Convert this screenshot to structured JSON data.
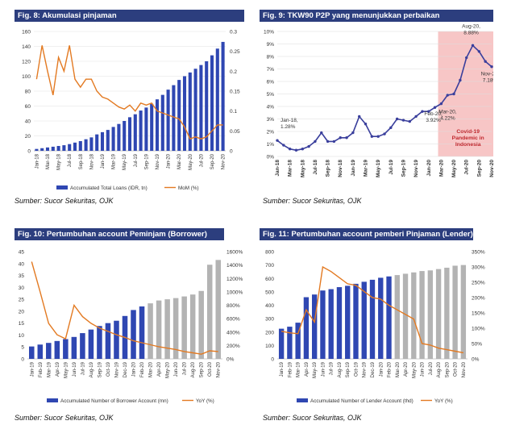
{
  "charts": [
    {
      "title": "Fig. 8: Akumulasi pinjaman",
      "source": "Sumber: Sucor Sekuritas, OJK",
      "chart_data": {
        "type": "bar+line",
        "title": "Fig. 8: Akumulasi pinjaman",
        "categories": [
          "Jan-18",
          "Feb-18",
          "Mar-18",
          "Apr-18",
          "May-18",
          "Jun-18",
          "Jul-18",
          "Aug-18",
          "Sep-18",
          "Oct-18",
          "Nov-18",
          "Dec-18",
          "Jan-19",
          "Feb-19",
          "Mar-19",
          "Apr-19",
          "May-19",
          "Jun-19",
          "Jul-19",
          "Aug-19",
          "Sep-19",
          "Oct-19",
          "Nov-19",
          "Dec-19",
          "Jan-20",
          "Feb-20",
          "Mar-20",
          "Apr-20",
          "May-20",
          "Jun-20",
          "Jul-20",
          "Aug-20",
          "Sep-20",
          "Oct-20",
          "Nov-20"
        ],
        "tick_labels": [
          "Jan-18",
          "Mar-18",
          "May-18",
          "Jul-18",
          "Sep-18",
          "Nov-18",
          "Jan-19",
          "Mar-19",
          "May-19",
          "Jul-19",
          "Sep-19",
          "Nov-19",
          "Jan-20",
          "Mar-20",
          "May-20",
          "Jul-20",
          "Sep-20",
          "Nov-20"
        ],
        "series": [
          {
            "name": "Accumulated Total Loans (IDR, tn)",
            "axis": "left",
            "kind": "bar",
            "color": "#2f47b2",
            "values": [
              2.5,
              3.5,
              4.5,
              5.5,
              6.5,
              7.5,
              9,
              11,
              13,
              15.5,
              18,
              22,
              25,
              28,
              32,
              36,
              40,
              45,
              49,
              54,
              58,
              63,
              69,
              75,
              82,
              88,
              95,
              100,
              105,
              110,
              115,
              120,
              128,
              137,
              146
            ]
          },
          {
            "name": "MoM (%)",
            "axis": "right",
            "kind": "line",
            "color": "#e37a22",
            "values": [
              0.18,
              0.265,
              0.2,
              0.14,
              0.235,
              0.2,
              0.265,
              0.18,
              0.16,
              0.18,
              0.18,
              0.15,
              0.135,
              0.13,
              0.12,
              0.11,
              0.105,
              0.115,
              0.1,
              0.12,
              0.115,
              0.12,
              0.1,
              0.095,
              0.09,
              0.085,
              0.08,
              0.06,
              0.03,
              0.035,
              0.03,
              0.035,
              0.05,
              0.065,
              0.065
            ]
          }
        ],
        "yleft": {
          "min": 0,
          "max": 160,
          "ticks": [
            "0",
            "20",
            "40",
            "60",
            "80",
            "100",
            "120",
            "140",
            "160"
          ]
        },
        "yright": {
          "min": 0,
          "max": 0.3,
          "ticks": [
            "0",
            "0.05",
            "0.1",
            "0.15",
            "0.2",
            "0.25",
            "0.3"
          ]
        },
        "legend": [
          "Accumulated Total Loans (IDR, tn)",
          "MoM (%)"
        ]
      }
    },
    {
      "title": "Fig. 9: TKW90 P2P yang menunjukkan perbaikan",
      "source": "Sumber: Sucor Sekuritas, OJK",
      "chart_data": {
        "type": "line",
        "title": "Fig. 9: TKW90 P2P yang menunjukkan perbaikan",
        "categories": [
          "Jan-18",
          "Feb-18",
          "Mar-18",
          "Apr-18",
          "May-18",
          "Jun-18",
          "Jul-18",
          "Aug-18",
          "Sep-18",
          "Oct-18",
          "Nov-18",
          "Dec-18",
          "Jan-19",
          "Feb-19",
          "Mar-19",
          "Apr-19",
          "May-19",
          "Jun-19",
          "Jul-19",
          "Aug-19",
          "Sep-19",
          "Oct-19",
          "Nov-19",
          "Dec-19",
          "Jan-20",
          "Feb-20",
          "Mar-20",
          "Apr-20",
          "May-20",
          "Jun-20",
          "Jul-20",
          "Aug-20",
          "Sep-20",
          "Oct-20",
          "Nov-20"
        ],
        "tick_labels": [
          "Jan-18",
          "Mar-18",
          "May-18",
          "Jul-18",
          "Sep-18",
          "Nov-18",
          "Jan-19",
          "Mar-19",
          "May-19",
          "Jul-19",
          "Sep-19",
          "Nov-19",
          "Jan-20",
          "Mar-20",
          "May-20",
          "Jul-20",
          "Sep-20",
          "Nov-20"
        ],
        "series": [
          {
            "name": "TKW90",
            "color": "#3a3f9c",
            "values": [
              1.28,
              0.9,
              0.6,
              0.5,
              0.6,
              0.8,
              1.2,
              1.9,
              1.2,
              1.2,
              1.5,
              1.5,
              1.9,
              3.2,
              2.6,
              1.6,
              1.6,
              1.8,
              2.3,
              3.0,
              2.9,
              2.8,
              3.2,
              3.6,
              3.6,
              3.92,
              4.22,
              4.9,
              5.0,
              6.1,
              7.9,
              8.88,
              8.4,
              7.6,
              7.18
            ]
          }
        ],
        "ylim": [
          0,
          10
        ],
        "yticks": [
          "0%",
          "1%",
          "2%",
          "3%",
          "4%",
          "5%",
          "6%",
          "7%",
          "8%",
          "9%",
          "10%"
        ],
        "highlight": {
          "from": "Mar-20",
          "to": "Nov-20",
          "label": "Covid-19 Pandemic in Indonesia"
        },
        "annotations": [
          {
            "at": "Jan-18",
            "text": "Jan-18, 1.28%"
          },
          {
            "at": "Feb-20",
            "text": "Feb-20, 3.92%"
          },
          {
            "at": "Mar-20",
            "text": "Mar-20, 4.22%"
          },
          {
            "at": "Aug-20",
            "text": "Aug-20, 8.88%"
          },
          {
            "at": "Nov-20",
            "text": "Nov-20, 7.18%"
          }
        ]
      }
    },
    {
      "title": "Fig. 10: Pertumbuhan account Peminjam (Borrower)",
      "source": "Sumber: Sucor Sekuritas, OJK",
      "chart_data": {
        "type": "bar+line",
        "title": "Fig. 10: Pertumbuhan account Peminjam (Borrower)",
        "categories": [
          "Jan-19",
          "Feb-19",
          "Mar-19",
          "Apr-19",
          "May-19",
          "Jun-19",
          "Jul-19",
          "Aug-19",
          "Sep-19",
          "Oct-19",
          "Nov-19",
          "Dec-19",
          "Jan-20",
          "Feb-20",
          "Mar-20",
          "Apr-20",
          "May-20",
          "Jun-20",
          "Jul-20",
          "Aug-20",
          "Sep-20",
          "Oct-20",
          "Nov-20"
        ],
        "tick_labels": [
          "Jan-19",
          "Feb-19",
          "Mar-19",
          "Apr-19",
          "May-19",
          "Jun-19",
          "Jul-19",
          "Aug-19",
          "Sep-19",
          "Oct-19",
          "Nov-19",
          "Dec-19",
          "Jan-20",
          "Feb-20",
          "Mar-20",
          "Apr-20",
          "May-20",
          "Jun-20",
          "Jul-20",
          "Aug-20",
          "Sep-20",
          "Oct-20",
          "Nov-20"
        ],
        "bar_colors": {
          "before": "#2f47b2",
          "after": "#b3b3b3",
          "split": "Mar-20"
        },
        "series": [
          {
            "name": "Accumulated Number of Borrower Account (mn)",
            "axis": "left",
            "kind": "bar",
            "values": [
              5.2,
              6,
              6.7,
              7.5,
              8.3,
              9.2,
              10.8,
              12.3,
              13.8,
              15,
              16,
              18,
              20.5,
              22,
              23.3,
              24.5,
              25,
              25.5,
              26.2,
              27,
              28.5,
              39.5,
              41.5
            ]
          },
          {
            "name": "YoY (%)",
            "axis": "right",
            "kind": "line",
            "color": "#e37a22",
            "values": [
              1450,
              1000,
              530,
              360,
              300,
              800,
              630,
              530,
              460,
              410,
              360,
              320,
              270,
              240,
              210,
              180,
              160,
              140,
              110,
              90,
              70,
              120,
              110
            ]
          }
        ],
        "yleft": {
          "min": 0,
          "max": 45,
          "ticks": [
            "0",
            "5",
            "10",
            "15",
            "20",
            "25",
            "30",
            "35",
            "40",
            "45"
          ]
        },
        "yright": {
          "min": 0,
          "max": 1600,
          "ticks": [
            "0%",
            "200%",
            "400%",
            "600%",
            "800%",
            "1000%",
            "1200%",
            "1400%",
            "1600%"
          ]
        },
        "legend": [
          "Accumulated Number of Borrower Account (mn)",
          "YoY (%)"
        ]
      }
    },
    {
      "title": "Fig. 11: Pertumbuhan account pemberi Pinjaman (Lender)",
      "source": "Sumber: Sucor Sekuritas, OJK",
      "chart_data": {
        "type": "bar+line",
        "title": "Fig. 11: Pertumbuhan account pemberi Pinjaman (Lender)",
        "categories": [
          "Jan-19",
          "Feb-19",
          "Mar-19",
          "Apr-19",
          "May-19",
          "Jun-19",
          "Jul-19",
          "Aug-19",
          "Sep-19",
          "Oct-19",
          "Nov-19",
          "Dec-19",
          "Jan-20",
          "Feb-20",
          "Mar-20",
          "Apr-20",
          "May-20",
          "Jun-20",
          "Jul-20",
          "Aug-20",
          "Sep-20",
          "Oct-20",
          "Nov-20"
        ],
        "tick_labels": [
          "Jan-19",
          "Feb-19",
          "Mar-19",
          "Apr-19",
          "May-19",
          "Jun-19",
          "Jul-19",
          "Aug-19",
          "Sep-19",
          "Oct-19",
          "Nov-19",
          "Dec-19",
          "Jan-20",
          "Feb-20",
          "Mar-20",
          "Apr-20",
          "May-20",
          "Jun-20",
          "Jul-20",
          "Aug-20",
          "Sep-20",
          "Oct-20",
          "Nov-20"
        ],
        "bar_colors": {
          "before": "#2f47b2",
          "after": "#b3b3b3",
          "split": "Mar-20"
        },
        "series": [
          {
            "name": "Accumulated Number of Lender Account (thd)",
            "axis": "left",
            "kind": "bar",
            "values": [
              225,
              240,
              270,
              460,
              480,
              510,
              520,
              535,
              545,
              560,
              575,
              590,
              605,
              615,
              625,
              635,
              645,
              655,
              660,
              670,
              680,
              695,
              700
            ]
          },
          {
            "name": "YoY (%)",
            "axis": "right",
            "kind": "line",
            "color": "#e37a22",
            "values": [
              90,
              85,
              82,
              160,
              120,
              300,
              285,
              265,
              245,
              240,
              220,
              200,
              195,
              175,
              160,
              145,
              130,
              50,
              45,
              35,
              30,
              25,
              20
            ]
          }
        ],
        "yleft": {
          "min": 0,
          "max": 800,
          "ticks": [
            "0",
            "100",
            "200",
            "300",
            "400",
            "500",
            "600",
            "700",
            "800"
          ]
        },
        "yright": {
          "min": 0,
          "max": 350,
          "ticks": [
            "0%",
            "50%",
            "100%",
            "150%",
            "200%",
            "250%",
            "300%",
            "350%"
          ]
        },
        "legend": [
          "Accumulated Number of Lender Account (thd)",
          "YoY (%)"
        ]
      }
    }
  ]
}
